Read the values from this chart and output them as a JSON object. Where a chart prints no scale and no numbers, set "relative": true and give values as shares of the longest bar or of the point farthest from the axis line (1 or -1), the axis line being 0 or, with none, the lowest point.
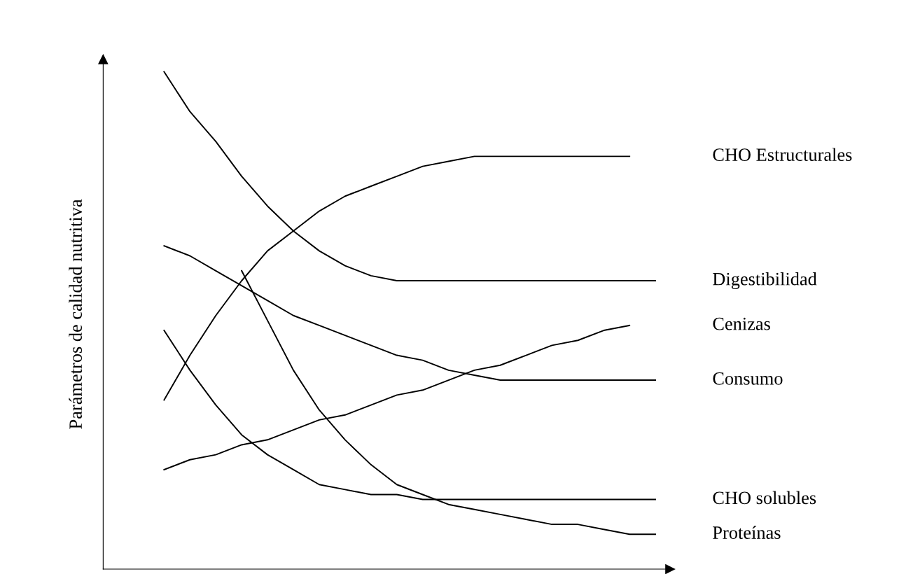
{
  "chart_data": {
    "type": "line",
    "relative": true,
    "ylabel": "Parámetros de calidad nutritiva",
    "categories": [
      null,
      null,
      null,
      null,
      null,
      null,
      null,
      null,
      null,
      null,
      null,
      null,
      null,
      null,
      null,
      null,
      null,
      null,
      null,
      null
    ],
    "marker": "none",
    "line_style": "solid",
    "grid": false,
    "legend": false,
    "series": [
      {
        "name": "CHO Estructurales",
        "color": "#000000",
        "values": [
          0.34,
          0.43,
          0.51,
          0.58,
          0.64,
          0.68,
          0.72,
          0.75,
          0.77,
          0.79,
          0.81,
          0.82,
          0.83,
          0.83,
          0.83,
          0.83,
          0.83,
          0.83,
          0.83,
          null
        ]
      },
      {
        "name": "Digestibilidad",
        "color": "#000000",
        "values": [
          1.0,
          0.92,
          0.86,
          0.79,
          0.73,
          0.68,
          0.64,
          0.61,
          0.59,
          0.58,
          0.58,
          0.58,
          0.58,
          0.58,
          0.58,
          0.58,
          0.58,
          0.58,
          0.58,
          0.58
        ]
      },
      {
        "name": "Cenizas",
        "color": "#000000",
        "values": [
          0.2,
          0.22,
          0.23,
          0.25,
          0.26,
          0.28,
          0.3,
          0.31,
          0.33,
          0.35,
          0.36,
          0.38,
          0.4,
          0.41,
          0.43,
          0.45,
          0.46,
          0.48,
          0.49,
          null
        ]
      },
      {
        "name": "Consumo",
        "color": "#000000",
        "values": [
          0.65,
          0.63,
          0.6,
          0.57,
          0.54,
          0.51,
          0.49,
          0.47,
          0.45,
          0.43,
          0.42,
          0.4,
          0.39,
          0.38,
          0.38,
          0.38,
          0.38,
          0.38,
          0.38,
          0.38
        ]
      },
      {
        "name": "CHO solubles",
        "color": "#000000",
        "values": [
          0.48,
          0.4,
          0.33,
          0.27,
          0.23,
          0.2,
          0.17,
          0.16,
          0.15,
          0.15,
          0.14,
          0.14,
          0.14,
          0.14,
          0.14,
          0.14,
          0.14,
          0.14,
          0.14,
          0.14
        ]
      },
      {
        "name": "Proteínas",
        "color": "#000000",
        "values": [
          null,
          null,
          null,
          0.6,
          0.5,
          0.4,
          0.32,
          0.26,
          0.21,
          0.17,
          0.15,
          0.13,
          0.12,
          0.11,
          0.1,
          0.09,
          0.09,
          0.08,
          0.07,
          0.07
        ]
      }
    ]
  }
}
